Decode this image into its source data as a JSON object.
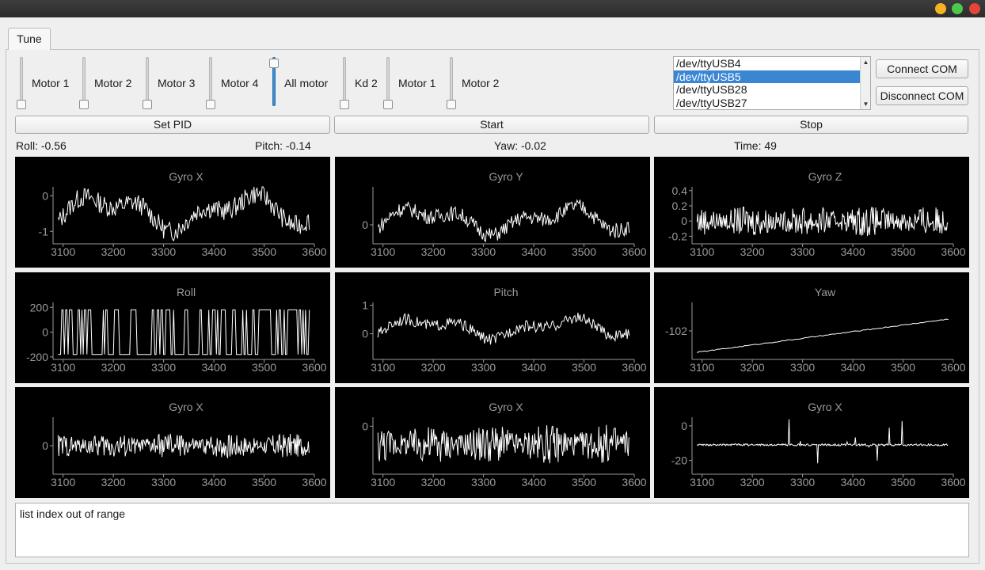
{
  "window": {
    "buttons": [
      "minimize-icon",
      "maximize-icon",
      "close-icon"
    ],
    "colors": {
      "minimize": "#f4b422",
      "maximize": "#4cc94a",
      "close": "#e3453a"
    }
  },
  "tabs": [
    {
      "label": "Tune",
      "active": true
    }
  ],
  "sliders": [
    {
      "label": "Motor 1",
      "value": 0.0
    },
    {
      "label": "Motor 2",
      "value": 0.0
    },
    {
      "label": "Motor 3",
      "value": 0.0
    },
    {
      "label": "Motor 4",
      "value": 0.0
    },
    {
      "label": "All motor",
      "value": 1.0
    },
    {
      "label": "Kd 2",
      "value": 0.0
    },
    {
      "label": "Motor 1",
      "value": 0.0
    },
    {
      "label": "Motor 2",
      "value": 0.0
    }
  ],
  "com_ports": {
    "items": [
      "/dev/ttyUSB4",
      "/dev/ttyUSB5",
      "/dev/ttyUSB28",
      "/dev/ttyUSB27"
    ],
    "selected": 1
  },
  "buttons": {
    "connect": "Connect COM",
    "disconnect": "Disconnect COM",
    "set_pid": "Set PID",
    "start": "Start",
    "stop": "Stop"
  },
  "status": {
    "roll": "Roll: -0.56",
    "pitch": "Pitch: -0.14",
    "yaw": "Yaw: -0.02",
    "time": "Time: 49"
  },
  "log_text": "list index out of range",
  "chart_data": [
    {
      "type": "line",
      "title": "Gyro X",
      "xlim": [
        3080,
        3600
      ],
      "ylim": [
        -1.35,
        0.25
      ],
      "xticks": [
        3100,
        3200,
        3300,
        3400,
        3500,
        3600
      ],
      "yticks": [
        0,
        -1
      ],
      "pattern": "wave",
      "series": [
        {
          "amp": 0.7,
          "center": -0.45
        }
      ]
    },
    {
      "type": "line",
      "title": "Gyro Y",
      "xlim": [
        3080,
        3600
      ],
      "ylim": [
        -0.6,
        1.2
      ],
      "xticks": [
        3100,
        3200,
        3300,
        3400,
        3500,
        3600
      ],
      "yticks": [
        0
      ],
      "pattern": "wave",
      "series": [
        {
          "amp": 0.6,
          "center": 0.15
        }
      ]
    },
    {
      "type": "line",
      "title": "Gyro Z",
      "xlim": [
        3080,
        3600
      ],
      "ylim": [
        -0.3,
        0.45
      ],
      "xticks": [
        3100,
        3200,
        3300,
        3400,
        3500,
        3600
      ],
      "yticks": [
        0.4,
        0.2,
        0,
        -0.2
      ],
      "pattern": "noise",
      "series": [
        {
          "amp": 0.2,
          "center": 0
        }
      ]
    },
    {
      "type": "line",
      "title": "Roll",
      "xlim": [
        3080,
        3600
      ],
      "ylim": [
        -220,
        240
      ],
      "xticks": [
        3100,
        3200,
        3300,
        3400,
        3500,
        3600
      ],
      "yticks": [
        200,
        0,
        -200
      ],
      "pattern": "square",
      "series": [
        {
          "amp": 180,
          "center": 0
        }
      ]
    },
    {
      "type": "line",
      "title": "Pitch",
      "xlim": [
        3080,
        3600
      ],
      "ylim": [
        -0.9,
        1.1
      ],
      "xticks": [
        3100,
        3200,
        3300,
        3400,
        3500,
        3600
      ],
      "yticks": [
        1,
        0
      ],
      "pattern": "wave",
      "series": [
        {
          "amp": 0.5,
          "center": 0.2
        }
      ]
    },
    {
      "type": "line",
      "title": "Yaw",
      "xlim": [
        3080,
        3600
      ],
      "ylim": [
        -103.2,
        -100.8
      ],
      "xticks": [
        3100,
        3200,
        3300,
        3400,
        3500,
        3600
      ],
      "yticks": [
        -102
      ],
      "pattern": "ramp",
      "series": [
        {
          "from": -102.9,
          "to": -101.5
        }
      ]
    },
    {
      "type": "line",
      "title": "Gyro X",
      "xlim": [
        3080,
        3600
      ],
      "ylim": [
        -2.5,
        2.5
      ],
      "xticks": [
        3100,
        3200,
        3300,
        3400,
        3500,
        3600
      ],
      "yticks": [
        0
      ],
      "pattern": "noise",
      "series": [
        {
          "amp": 1.1,
          "center": 0
        }
      ]
    },
    {
      "type": "line",
      "title": "Gyro X",
      "xlim": [
        3080,
        3600
      ],
      "ylim": [
        -3.2,
        0.6
      ],
      "xticks": [
        3100,
        3200,
        3300,
        3400,
        3500,
        3600
      ],
      "yticks": [
        0
      ],
      "pattern": "noise",
      "series": [
        {
          "amp": 1.3,
          "center": -1.2
        }
      ]
    },
    {
      "type": "line",
      "title": "Gyro X",
      "xlim": [
        3080,
        3600
      ],
      "ylim": [
        -28,
        5
      ],
      "xticks": [
        3100,
        3200,
        3300,
        3400,
        3500,
        3600
      ],
      "yticks": [
        0,
        -20
      ],
      "pattern": "spikes",
      "series": [
        {
          "amp": 18,
          "center": -11
        }
      ]
    }
  ]
}
